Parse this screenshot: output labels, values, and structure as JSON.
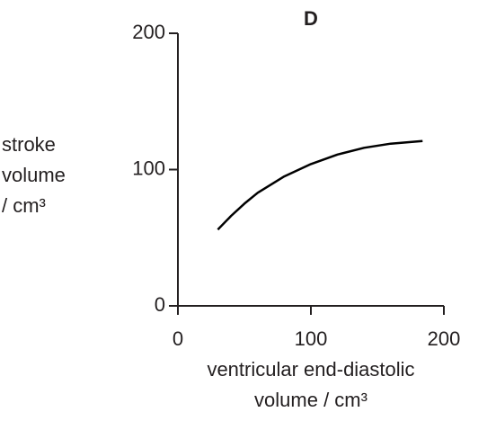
{
  "chart_data": {
    "type": "line",
    "title": "D",
    "ylabel": [
      "stroke",
      "volume",
      "/ cm³"
    ],
    "xlabel": [
      "ventricular end-diastolic",
      "volume / cm³"
    ],
    "x": [
      30,
      40,
      50,
      60,
      80,
      100,
      120,
      140,
      160,
      184
    ],
    "values": [
      56,
      66,
      75,
      83,
      95,
      104,
      111,
      116,
      119,
      121
    ],
    "color": "#000000",
    "xlim": [
      0,
      200
    ],
    "xticks": [
      0,
      100,
      200
    ],
    "ylim": [
      0,
      200
    ],
    "yticks": [
      0,
      100,
      200
    ],
    "grid": false
  }
}
